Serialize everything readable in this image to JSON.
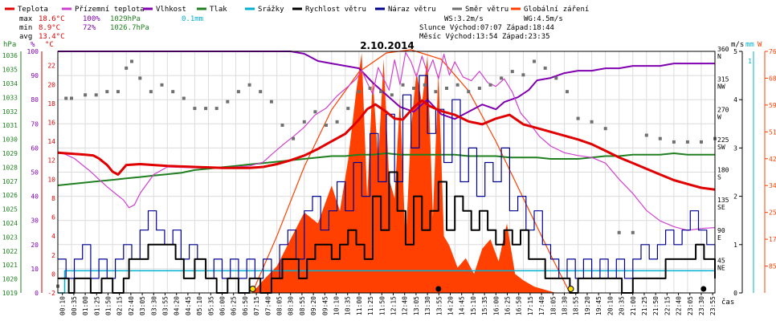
{
  "chart_data": {
    "type": "line",
    "title": "2.10.2014",
    "legend": {
      "placement": "top",
      "items": [
        {
          "label": "Teplota",
          "color": "#e00000"
        },
        {
          "label": "Přízemní teplota",
          "color": "#d040d0"
        },
        {
          "label": "Vlhkost",
          "color": "#8000b0"
        },
        {
          "label": "Tlak",
          "color": "#208020"
        },
        {
          "label": "Srážky",
          "color": "#00b0d0"
        },
        {
          "label": "Rychlost větru",
          "color": "#000000"
        },
        {
          "label": "Náraz větru",
          "color": "#000090"
        },
        {
          "label": "Směr větru",
          "color": "#707070"
        },
        {
          "label": "Globální záření",
          "color": "#ff4000"
        }
      ]
    },
    "stats": {
      "max": {
        "label": "max",
        "temp": "18.6°C",
        "hum": "100%",
        "press": "1029hPa",
        "rain": "0.1mm"
      },
      "min": {
        "label": "min",
        "temp": "8.9°C",
        "hum": "72%",
        "press": "1026.7hPa"
      },
      "avg": {
        "label": "avg",
        "temp": "13.4°C"
      }
    },
    "info": {
      "ws": "WS:3.2m/s",
      "wg": "WG:4.5m/s",
      "sun": "Slunce Východ:07:07  Západ:18:44",
      "moon": "Měsíc  Východ:13:54  Západ:23:35"
    },
    "axis_units": {
      "press": "hPa",
      "hum": "%",
      "temp": "°C",
      "wind": "m/s",
      "rain": "mm",
      "rad": "W",
      "time": "čas"
    },
    "x_ticks": [
      "00:10",
      "00:35",
      "01:00",
      "01:25",
      "01:50",
      "02:15",
      "02:40",
      "03:05",
      "03:30",
      "03:55",
      "04:20",
      "04:45",
      "05:10",
      "05:35",
      "06:00",
      "06:25",
      "06:50",
      "07:15",
      "07:40",
      "08:05",
      "08:30",
      "08:55",
      "09:20",
      "09:45",
      "10:10",
      "10:35",
      "11:00",
      "11:25",
      "11:50",
      "12:15",
      "12:40",
      "13:05",
      "13:30",
      "13:55",
      "14:20",
      "14:45",
      "15:10",
      "15:35",
      "16:00",
      "16:25",
      "16:50",
      "17:15",
      "17:40",
      "18:05",
      "18:30",
      "18:55",
      "19:20",
      "19:45",
      "20:10",
      "20:35",
      "21:00",
      "21:25",
      "21:50",
      "22:15",
      "22:40",
      "23:05",
      "23:30",
      "23:55"
    ],
    "y_axes": {
      "press": [
        "1019",
        "1020",
        "1021",
        "1022",
        "1023",
        "1024",
        "1025",
        "1026",
        "1027",
        "1028",
        "1029",
        "1030",
        "1031",
        "1032",
        "1033",
        "1034",
        "1035",
        "1036"
      ],
      "hum": [
        "0",
        "10",
        "20",
        "30",
        "40",
        "50",
        "60",
        "70",
        "80",
        "90",
        "100"
      ],
      "temp": [
        "-2",
        "0",
        "2",
        "4",
        "6",
        "8",
        "10",
        "12",
        "14",
        "16",
        "18",
        "20",
        "22"
      ],
      "dir": [
        "360",
        "315",
        "270",
        "225",
        "180",
        "135",
        "90",
        "45"
      ],
      "dir_labels": [
        "N",
        "NW",
        "W",
        "SW",
        "S",
        "SE",
        "E",
        "NE"
      ],
      "wind": [
        "0",
        "1",
        "2",
        "3",
        "4",
        "5"
      ],
      "rain": [
        "1"
      ],
      "rad": [
        "85",
        "170",
        "255",
        "340",
        "425",
        "510",
        "595",
        "680",
        "765"
      ]
    },
    "ranges": {
      "hum": [
        0,
        100
      ],
      "temp": [
        -2,
        23.5
      ],
      "press": [
        1019,
        1036.3
      ],
      "wind": [
        0,
        5
      ],
      "rad": [
        0,
        765
      ],
      "dir": [
        0,
        360
      ],
      "hours": [
        0,
        24
      ]
    },
    "series": {
      "temperature": {
        "hours": [
          0.0,
          0.5,
          1.0,
          1.3,
          1.5,
          1.8,
          2.0,
          2.2,
          2.5,
          3.0,
          3.5,
          4.0,
          5.0,
          6.0,
          7.0,
          7.5,
          8.0,
          8.5,
          9.0,
          9.5,
          10.0,
          10.5,
          11.0,
          11.3,
          11.6,
          12.0,
          12.3,
          12.6,
          13.0,
          13.3,
          13.6,
          14.0,
          14.5,
          15.0,
          15.5,
          16.0,
          16.5,
          17.0,
          17.5,
          18.0,
          18.5,
          19.0,
          19.5,
          20.0,
          20.5,
          21.0,
          21.5,
          22.0,
          22.5,
          23.0,
          23.5,
          24.0
        ],
        "values": [
          12.8,
          12.7,
          12.6,
          12.5,
          12.2,
          11.5,
          10.8,
          10.5,
          11.5,
          11.6,
          11.5,
          11.4,
          11.3,
          11.2,
          11.2,
          11.3,
          11.6,
          12.0,
          12.5,
          13.2,
          14.0,
          14.8,
          16.3,
          17.4,
          17.9,
          17.1,
          16.4,
          16.3,
          17.6,
          18.3,
          17.7,
          17.2,
          16.8,
          16.1,
          15.8,
          16.4,
          16.8,
          15.8,
          15.4,
          15.0,
          14.6,
          14.2,
          13.7,
          13.0,
          12.3,
          11.7,
          11.1,
          10.5,
          9.9,
          9.5,
          9.1,
          8.9
        ]
      },
      "ground_temperature": {
        "hours": [
          0.0,
          0.3,
          0.6,
          0.9,
          1.2,
          1.5,
          1.8,
          2.1,
          2.4,
          2.6,
          2.8,
          3.0,
          3.5,
          4.0,
          5.0,
          6.0,
          7.0,
          7.5,
          7.8,
          8.2,
          8.6,
          9.0,
          9.4,
          9.8,
          10.2,
          10.6,
          10.9,
          11.1,
          11.3,
          11.5,
          11.7,
          11.9,
          12.1,
          12.3,
          12.5,
          12.7,
          12.9,
          13.1,
          13.3,
          13.5,
          13.7,
          13.9,
          14.1,
          14.3,
          14.5,
          14.8,
          15.1,
          15.4,
          15.7,
          16.0,
          16.3,
          16.6,
          16.9,
          17.2,
          17.6,
          18.0,
          18.5,
          19.0,
          19.5,
          20.0,
          20.5,
          21.0,
          21.5,
          22.0,
          22.5,
          23.0,
          23.5,
          24.0
        ],
        "values": [
          12.9,
          12.6,
          12.2,
          11.5,
          10.8,
          10.0,
          9.2,
          8.5,
          7.8,
          7.0,
          7.3,
          8.5,
          10.5,
          11.3,
          11.2,
          11.2,
          11.4,
          11.8,
          12.6,
          13.6,
          14.5,
          15.5,
          16.8,
          17.5,
          18.8,
          19.8,
          20.6,
          21.5,
          20.2,
          19.0,
          21.8,
          20.6,
          19.4,
          22.6,
          20.0,
          23.4,
          22.4,
          20.8,
          23.0,
          21.2,
          22.6,
          20.6,
          23.2,
          21.0,
          22.4,
          20.8,
          20.4,
          21.4,
          20.2,
          19.8,
          20.6,
          19.2,
          17.0,
          16.0,
          14.5,
          13.5,
          12.8,
          12.5,
          12.3,
          11.7,
          10.0,
          8.5,
          6.7,
          5.6,
          5.0,
          4.6,
          4.8,
          4.9
        ]
      },
      "humidity": {
        "hours": [
          0.0,
          6.0,
          7.4,
          8.0,
          8.5,
          9.0,
          9.5,
          10.0,
          10.5,
          11.0,
          11.5,
          12.0,
          12.5,
          13.0,
          13.5,
          14.0,
          14.5,
          15.0,
          15.5,
          16.0,
          16.3,
          16.8,
          17.2,
          17.5,
          18.0,
          18.5,
          19.0,
          19.5,
          20.0,
          20.5,
          21.0,
          21.5,
          22.0,
          22.5,
          23.0,
          23.5,
          24.0
        ],
        "values": [
          100,
          100,
          100,
          100,
          100,
          99,
          96,
          95,
          94,
          93,
          87,
          82,
          77,
          75,
          80,
          74,
          72,
          75,
          78,
          76,
          79,
          81,
          84,
          88,
          89,
          91,
          92,
          92,
          93,
          93,
          94,
          94,
          94,
          95,
          95,
          95,
          95
        ]
      },
      "pressure": {
        "hours": [
          0.0,
          0.5,
          1.0,
          1.5,
          2.0,
          2.5,
          3.0,
          3.5,
          4.0,
          4.5,
          5.0,
          5.5,
          6.0,
          6.5,
          7.0,
          7.5,
          8.0,
          8.5,
          9.0,
          9.5,
          10.0,
          10.5,
          11.0,
          11.5,
          12.0,
          12.5,
          13.0,
          13.5,
          14.0,
          14.5,
          15.0,
          15.5,
          16.0,
          16.5,
          17.0,
          17.5,
          18.0,
          18.5,
          19.0,
          19.5,
          20.0,
          20.5,
          21.0,
          21.5,
          22.0,
          22.5,
          23.0,
          23.5,
          24.0
        ],
        "values": [
          1026.7,
          1026.8,
          1026.9,
          1027.0,
          1027.1,
          1027.2,
          1027.3,
          1027.4,
          1027.5,
          1027.6,
          1027.8,
          1027.9,
          1028.0,
          1028.1,
          1028.2,
          1028.3,
          1028.4,
          1028.5,
          1028.6,
          1028.7,
          1028.8,
          1028.8,
          1028.9,
          1028.9,
          1029.0,
          1028.9,
          1028.9,
          1028.9,
          1028.9,
          1028.9,
          1028.8,
          1028.8,
          1028.8,
          1028.7,
          1028.7,
          1028.7,
          1028.6,
          1028.6,
          1028.6,
          1028.7,
          1028.8,
          1028.8,
          1028.9,
          1028.9,
          1028.9,
          1029.0,
          1028.9,
          1028.9,
          1028.9
        ]
      },
      "precipitation": {
        "hours": [
          0.0,
          0.25,
          24.0
        ],
        "values": [
          0.0,
          0.1,
          0.1
        ]
      },
      "wind_speed": {
        "hours": [
          0.0,
          0.4,
          0.6,
          0.8,
          1.2,
          1.6,
          2.0,
          2.4,
          2.6,
          3.0,
          3.3,
          3.6,
          4.0,
          4.3,
          4.6,
          5.0,
          5.4,
          5.8,
          6.2,
          6.6,
          7.0,
          7.4,
          7.8,
          8.2,
          8.5,
          8.8,
          9.1,
          9.4,
          9.7,
          10.0,
          10.3,
          10.6,
          10.9,
          11.2,
          11.5,
          11.8,
          12.1,
          12.4,
          12.7,
          13.0,
          13.3,
          13.6,
          13.9,
          14.2,
          14.5,
          14.8,
          15.1,
          15.4,
          15.7,
          16.0,
          16.3,
          16.6,
          16.9,
          17.2,
          17.5,
          17.8,
          18.1,
          18.4,
          18.7,
          19.0,
          19.4,
          19.8,
          20.2,
          20.6,
          21.0,
          21.4,
          21.8,
          22.2,
          22.6,
          23.0,
          23.3,
          23.6,
          24.0
        ],
        "values": [
          0.3,
          0.0,
          0.3,
          0.3,
          0.0,
          0.3,
          0.0,
          0.3,
          0.7,
          0.7,
          1.0,
          1.0,
          1.0,
          0.7,
          0.3,
          0.7,
          0.3,
          0.0,
          0.3,
          0.0,
          0.3,
          0.0,
          0.3,
          0.7,
          0.7,
          0.3,
          0.7,
          1.0,
          1.0,
          0.7,
          1.0,
          1.3,
          1.0,
          0.7,
          2.0,
          1.3,
          2.5,
          1.7,
          1.0,
          2.0,
          1.3,
          1.7,
          2.3,
          1.3,
          2.0,
          1.7,
          1.3,
          1.7,
          1.3,
          1.0,
          1.3,
          1.0,
          1.3,
          0.7,
          0.7,
          0.3,
          0.3,
          0.3,
          0.0,
          0.3,
          0.3,
          0.3,
          0.3,
          0.0,
          0.3,
          0.3,
          0.3,
          0.7,
          0.7,
          0.7,
          1.0,
          0.7,
          0.3
        ]
      },
      "wind_gust": {
        "hours": [
          0.0,
          0.3,
          0.6,
          0.9,
          1.2,
          1.5,
          1.8,
          2.1,
          2.4,
          2.7,
          3.0,
          3.3,
          3.6,
          3.9,
          4.2,
          4.5,
          4.8,
          5.1,
          5.4,
          5.7,
          6.0,
          6.3,
          6.6,
          6.9,
          7.2,
          7.5,
          7.8,
          8.1,
          8.4,
          8.7,
          9.0,
          9.3,
          9.6,
          9.9,
          10.2,
          10.5,
          10.8,
          11.1,
          11.4,
          11.7,
          12.0,
          12.3,
          12.6,
          12.9,
          13.2,
          13.5,
          13.8,
          14.1,
          14.4,
          14.7,
          15.0,
          15.3,
          15.6,
          15.9,
          16.2,
          16.5,
          16.8,
          17.1,
          17.4,
          17.7,
          18.0,
          18.3,
          18.6,
          18.9,
          19.2,
          19.5,
          19.8,
          20.1,
          20.4,
          20.7,
          21.0,
          21.3,
          21.6,
          21.9,
          22.2,
          22.5,
          22.8,
          23.1,
          23.4,
          23.7,
          24.0
        ],
        "values": [
          0.7,
          0.3,
          0.7,
          1.0,
          0.3,
          0.7,
          0.3,
          0.7,
          1.0,
          0.7,
          1.3,
          1.7,
          1.3,
          1.0,
          1.3,
          0.7,
          1.0,
          0.7,
          0.3,
          0.7,
          0.3,
          0.7,
          0.3,
          0.7,
          0.3,
          0.7,
          0.3,
          1.0,
          1.3,
          0.7,
          1.7,
          2.0,
          1.3,
          1.7,
          2.3,
          1.7,
          2.7,
          2.0,
          3.3,
          2.3,
          3.7,
          2.3,
          4.1,
          3.0,
          4.5,
          3.3,
          3.8,
          2.7,
          4.0,
          2.3,
          3.0,
          2.0,
          2.7,
          2.3,
          3.0,
          1.7,
          2.0,
          1.3,
          1.7,
          1.0,
          0.7,
          0.3,
          0.7,
          0.3,
          0.7,
          0.3,
          0.7,
          0.3,
          0.7,
          0.3,
          0.7,
          1.0,
          0.7,
          1.0,
          1.3,
          1.0,
          1.3,
          1.7,
          1.3,
          1.0,
          0.7
        ]
      },
      "wind_direction": {
        "hours": [
          0.0,
          0.3,
          0.5,
          1.0,
          1.4,
          1.8,
          2.2,
          2.5,
          2.7,
          3.0,
          3.4,
          3.8,
          4.2,
          4.6,
          5.0,
          5.4,
          5.8,
          6.2,
          6.6,
          7.0,
          7.4,
          7.8,
          8.2,
          8.6,
          9.0,
          9.4,
          9.8,
          10.2,
          10.6,
          11.0,
          11.4,
          11.8,
          12.2,
          12.6,
          13.0,
          13.4,
          13.8,
          14.2,
          14.6,
          15.0,
          15.4,
          15.8,
          16.2,
          16.6,
          17.0,
          17.4,
          17.8,
          18.2,
          18.6,
          19.0,
          19.5,
          20.0,
          20.5,
          21.0,
          21.5,
          22.0,
          22.5,
          23.0,
          23.5,
          24.0
        ],
        "values": [
          10,
          290,
          290,
          295,
          295,
          300,
          300,
          335,
          345,
          320,
          300,
          310,
          300,
          290,
          275,
          275,
          275,
          285,
          300,
          310,
          300,
          285,
          250,
          230,
          255,
          270,
          250,
          255,
          275,
          300,
          305,
          300,
          295,
          310,
          305,
          310,
          300,
          305,
          310,
          300,
          305,
          310,
          320,
          330,
          325,
          345,
          335,
          320,
          300,
          260,
          255,
          245,
          90,
          90,
          235,
          230,
          225,
          225,
          225,
          230
        ]
      },
      "global_radiation": {
        "hours": [
          0.0,
          7.1,
          7.5,
          8.0,
          8.5,
          9.0,
          9.5,
          10.0,
          10.3,
          10.6,
          10.9,
          11.1,
          11.3,
          11.5,
          11.7,
          11.9,
          12.1,
          12.3,
          12.5,
          12.7,
          12.9,
          13.1,
          13.3,
          13.5,
          13.7,
          13.9,
          14.1,
          14.3,
          14.6,
          14.9,
          15.2,
          15.5,
          15.8,
          16.1,
          16.4,
          16.7,
          17.0,
          17.4,
          17.8,
          18.2,
          18.7,
          24.0
        ],
        "values": [
          0,
          0,
          40,
          85,
          170,
          255,
          220,
          340,
          260,
          420,
          640,
          760,
          300,
          680,
          420,
          740,
          360,
          300,
          620,
          150,
          520,
          700,
          600,
          750,
          240,
          700,
          180,
          150,
          80,
          110,
          60,
          140,
          170,
          100,
          220,
          60,
          40,
          20,
          10,
          0,
          0,
          0
        ]
      },
      "theoretical_radiation": {
        "hours": [
          7.1,
          8.0,
          9.0,
          10.0,
          11.0,
          12.0,
          12.9,
          14.0,
          15.0,
          16.0,
          17.0,
          18.0,
          18.7
        ],
        "values": [
          0,
          180,
          400,
          580,
          700,
          760,
          770,
          740,
          640,
          480,
          300,
          120,
          0
        ]
      }
    }
  }
}
